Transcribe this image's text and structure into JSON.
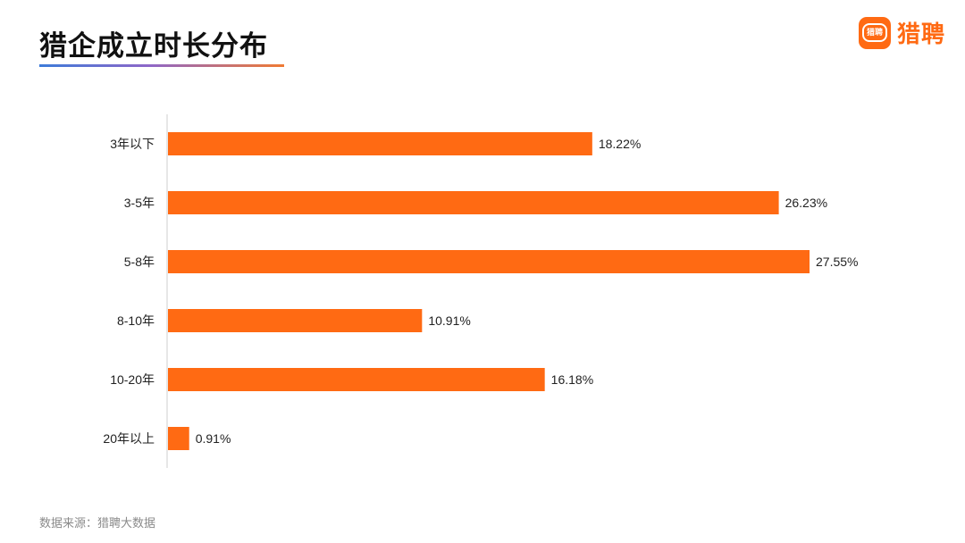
{
  "header": {
    "title": "猎企成立时长分布"
  },
  "logo": {
    "badge_text": "猎聘",
    "name": "猎聘",
    "icon": "liepin-logo-icon"
  },
  "footer": {
    "source": "数据来源：猎聘大数据"
  },
  "colors": {
    "bar": "#ff6a13",
    "accent": "#ff6a13"
  },
  "chart_data": {
    "type": "bar",
    "orientation": "horizontal",
    "categories": [
      "3年以下",
      "3-5年",
      "5-8年",
      "8-10年",
      "10-20年",
      "20年以上"
    ],
    "values": [
      18.22,
      26.23,
      27.55,
      10.91,
      16.18,
      0.91
    ],
    "value_labels": [
      "18.22%",
      "26.23%",
      "27.55%",
      "10.91%",
      "16.18%",
      "0.91%"
    ],
    "unit": "%",
    "xlim": [
      0,
      27.55
    ],
    "grid": false,
    "legend": "none"
  }
}
